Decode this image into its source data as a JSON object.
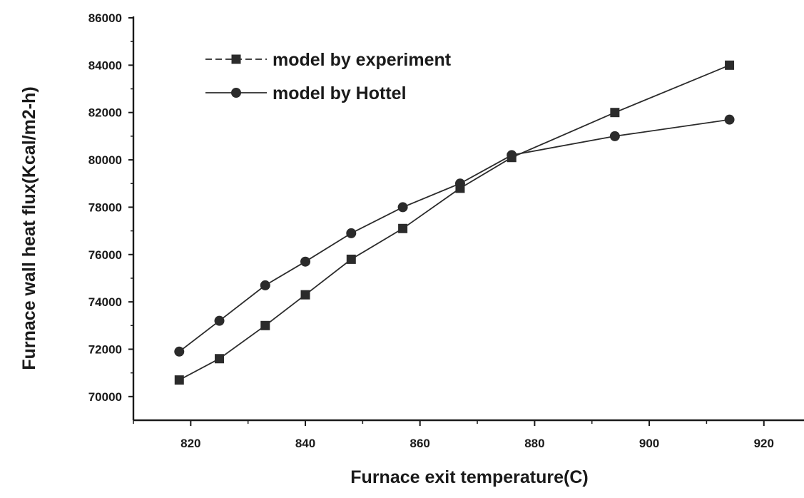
{
  "chart_data": {
    "type": "line",
    "title": "",
    "xlabel": "Furnace exit temperature(C)",
    "ylabel": "Furnace wall heat flux(Kcal/m2-h)",
    "xlim": [
      810,
      927
    ],
    "ylim": [
      69000,
      86000
    ],
    "x_ticks": [
      820,
      840,
      860,
      880,
      900,
      920
    ],
    "x_tick_labels": [
      "820",
      "840",
      "860",
      "880",
      "900",
      "920"
    ],
    "y_ticks": [
      70000,
      72000,
      74000,
      76000,
      78000,
      80000,
      82000,
      84000,
      86000
    ],
    "y_tick_labels": [
      "70000",
      "72000",
      "74000",
      "76000",
      "78000",
      "80000",
      "82000",
      "84000",
      "86000"
    ],
    "grid": false,
    "legend_position": "top-left",
    "series": [
      {
        "name": "model by experiment",
        "marker": "square",
        "color": "#2b2b2b",
        "x": [
          818,
          825,
          833,
          840,
          848,
          857,
          867,
          876,
          894,
          914
        ],
        "y": [
          70700,
          71600,
          73000,
          74300,
          75800,
          77100,
          78800,
          80100,
          82000,
          84000
        ]
      },
      {
        "name": "model by Hottel",
        "marker": "circle",
        "color": "#2b2b2b",
        "x": [
          818,
          825,
          833,
          840,
          848,
          857,
          867,
          876,
          894,
          914
        ],
        "y": [
          71900,
          73200,
          74700,
          75700,
          76900,
          78000,
          79000,
          80200,
          81000,
          81700
        ]
      }
    ]
  }
}
